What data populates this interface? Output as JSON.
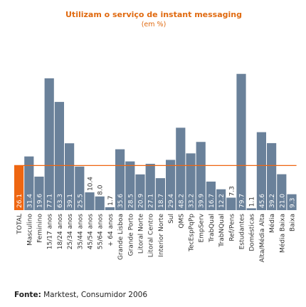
{
  "chart_data": {
    "type": "bar",
    "title": "Utilizam o serviço de instant messaging",
    "subtitle": "(em %)",
    "categories": [
      "TOTAL",
      "Masculino",
      "Feminino",
      "15/17 anos",
      "18/24 anos",
      "25/34 anos",
      "35/44 anos",
      "45/54 anos",
      "55/64 anos",
      "+ 64 anos",
      "Grande Lisboa",
      "Grande Porto",
      "Litoral Norte",
      "Litoral Centro",
      "Interior Norte",
      "Sul",
      "QMS",
      "TecEspPqPp",
      "EmpServ",
      "TrabQual",
      "TrabNQual",
      "Ref/Pens",
      "Estudantes",
      "Domésticas",
      "Alta/Média Alta",
      "Média",
      "Média Baixa",
      "Baixa"
    ],
    "value_labels": [
      "26.1",
      "31.4",
      "19.6",
      "77.1",
      "63.3",
      "39.1",
      "25.5",
      "10.4",
      "8.0",
      "1.7",
      "35.6",
      "28.5",
      "20.9",
      "27.1",
      "18.7",
      "29.4",
      "48.2",
      "33.2",
      "39.9",
      "16.7",
      "12.2",
      "7.3",
      "79.7",
      "1.1",
      "45.6",
      "39.2",
      "21.0",
      "9.3"
    ],
    "values": [
      26.1,
      31.4,
      19.6,
      77.1,
      63.3,
      39.1,
      25.5,
      10.4,
      8.0,
      1.7,
      35.6,
      28.5,
      20.9,
      27.1,
      18.7,
      29.4,
      48.2,
      33.2,
      39.9,
      16.7,
      12.2,
      7.3,
      79.7,
      1.1,
      45.6,
      39.2,
      21.0,
      9.3
    ],
    "reference_line": 26.1,
    "ylim": [
      0,
      100
    ],
    "xlabel": "",
    "ylabel": "",
    "grid": false,
    "colors": {
      "total_bar": "#ee6611",
      "bar": "#6a819a",
      "reference_line": "#ee6611",
      "title": "#e06a10"
    }
  },
  "source": {
    "label": "Fonte:",
    "text": " Marktest, Consumidor 2006"
  }
}
